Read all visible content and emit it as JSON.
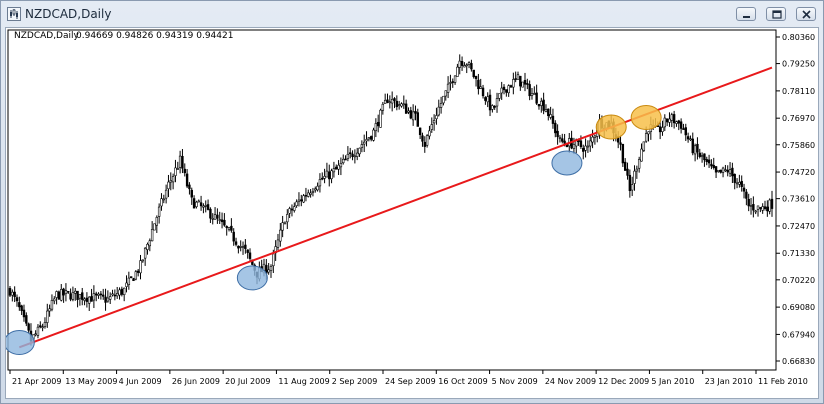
{
  "window": {
    "title": "NZDCAD,Daily",
    "controls": [
      "minimize-icon",
      "restore-icon",
      "close-icon"
    ]
  },
  "chart_info": {
    "label": "NZDCAD,Daily",
    "ohlc": "0.94669 0.94826 0.94319 0.94421"
  },
  "colors": {
    "candle": "#000000",
    "trendline": "#e8191b",
    "touch_marker_fill": "#8fb6de",
    "touch_marker_stroke": "#3f6fa6",
    "break_marker_fill": "#f7c04a",
    "break_marker_stroke": "#c98a10"
  },
  "chart_data": {
    "type": "candlestick",
    "symbol": "NZDCAD",
    "timeframe": "Daily",
    "y_ticks": [
      "0.80360",
      "0.79250",
      "0.78110",
      "0.76970",
      "0.75860",
      "0.74720",
      "0.73610",
      "0.72470",
      "0.71330",
      "0.70220",
      "0.69080",
      "0.67940",
      "0.66830"
    ],
    "ylim": [
      0.6683,
      0.8036
    ],
    "x_ticks": [
      "21 Apr 2009",
      "13 May 2009",
      "4 Jun 2009",
      "26 Jun 2009",
      "20 Jul 2009",
      "11 Aug 2009",
      "2 Sep 2009",
      "24 Sep 2009",
      "16 Oct 2009",
      "5 Nov 2009",
      "24 Nov 2009",
      "12 Dec 2009",
      "5 Jan 2010",
      "23 Jan 2010",
      "11 Feb 2010"
    ],
    "close_path": [
      [
        0,
        0.698
      ],
      [
        4,
        0.69
      ],
      [
        9,
        0.677
      ],
      [
        14,
        0.683
      ],
      [
        20,
        0.696
      ],
      [
        26,
        0.696
      ],
      [
        34,
        0.695
      ],
      [
        42,
        0.694
      ],
      [
        49,
        0.698
      ],
      [
        56,
        0.708
      ],
      [
        62,
        0.726
      ],
      [
        68,
        0.742
      ],
      [
        73,
        0.752
      ],
      [
        78,
        0.735
      ],
      [
        86,
        0.73
      ],
      [
        94,
        0.722
      ],
      [
        101,
        0.714
      ],
      [
        106,
        0.705
      ],
      [
        112,
        0.708
      ],
      [
        118,
        0.728
      ],
      [
        124,
        0.735
      ],
      [
        132,
        0.743
      ],
      [
        140,
        0.748
      ],
      [
        148,
        0.756
      ],
      [
        156,
        0.764
      ],
      [
        162,
        0.778
      ],
      [
        168,
        0.775
      ],
      [
        174,
        0.77
      ],
      [
        178,
        0.759
      ],
      [
        183,
        0.772
      ],
      [
        188,
        0.782
      ],
      [
        193,
        0.794
      ],
      [
        196,
        0.793
      ],
      [
        202,
        0.782
      ],
      [
        207,
        0.773
      ],
      [
        212,
        0.782
      ],
      [
        218,
        0.786
      ],
      [
        224,
        0.78
      ],
      [
        230,
        0.774
      ],
      [
        236,
        0.76
      ],
      [
        242,
        0.759
      ],
      [
        248,
        0.757
      ],
      [
        253,
        0.768
      ],
      [
        258,
        0.767
      ],
      [
        262,
        0.758
      ],
      [
        266,
        0.739
      ],
      [
        270,
        0.754
      ],
      [
        274,
        0.766
      ],
      [
        278,
        0.764
      ],
      [
        283,
        0.77
      ],
      [
        288,
        0.767
      ],
      [
        293,
        0.757
      ],
      [
        298,
        0.752
      ],
      [
        303,
        0.746
      ],
      [
        308,
        0.748
      ],
      [
        313,
        0.742
      ],
      [
        317,
        0.733
      ],
      [
        322,
        0.732
      ],
      [
        327,
        0.734
      ]
    ],
    "trendline": {
      "start": [
        4,
        0.674
      ],
      "end": [
        327,
        0.785
      ]
    },
    "touch_points": [
      [
        4,
        0.676
      ],
      [
        104,
        0.703
      ],
      [
        239,
        0.751
      ]
    ],
    "break_points": [
      [
        258,
        0.766
      ],
      [
        273,
        0.77
      ]
    ]
  }
}
